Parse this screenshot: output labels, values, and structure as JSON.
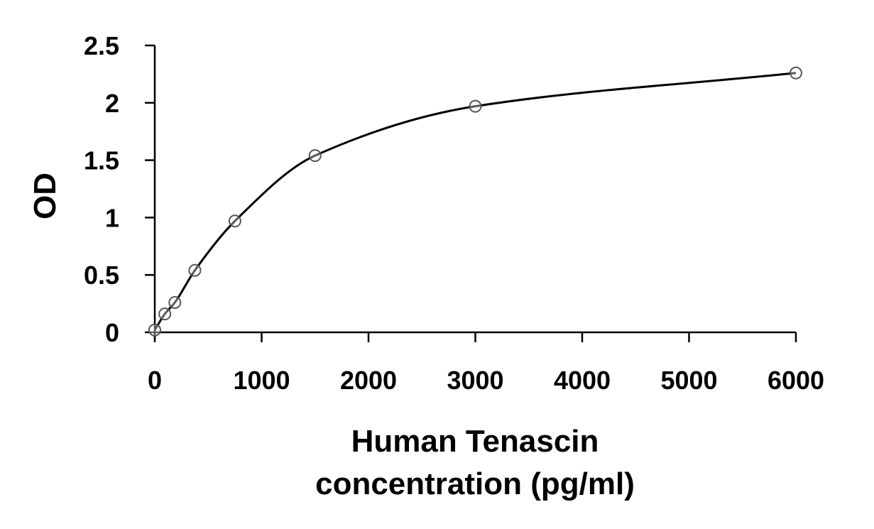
{
  "chart_data": {
    "type": "scatter",
    "title": "",
    "xlabel": [
      "Human Tenascin",
      "concentration (pg/ml)"
    ],
    "ylabel": "OD",
    "xlim": [
      0,
      6000
    ],
    "ylim": [
      0,
      2.5
    ],
    "x_ticks": [
      "0",
      "1000",
      "2000",
      "3000",
      "4000",
      "5000",
      "6000"
    ],
    "y_ticks": [
      "0",
      "0.5",
      "1",
      "1.5",
      "2",
      "2.5"
    ],
    "grid": false,
    "legend": "none",
    "series": [
      {
        "x": [
          0,
          94,
          188,
          375,
          750,
          1500,
          3000,
          6000
        ],
        "y": [
          0.02,
          0.16,
          0.26,
          0.54,
          0.97,
          1.54,
          1.97,
          2.26
        ],
        "marker": "open-circle",
        "fit": "smooth-curve"
      }
    ],
    "colors": {
      "line": "#000000",
      "marker_edge": "#555555",
      "background": "#ffffff"
    }
  }
}
